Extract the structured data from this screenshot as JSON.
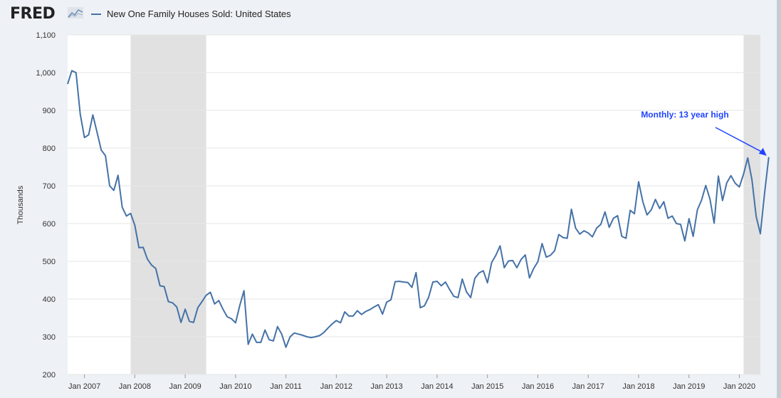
{
  "header": {
    "logo_text": "FRED",
    "logo_icon": "fred-chart-icon",
    "legend_label": "New One Family Houses Sold: United States",
    "series_color": "#4572a7"
  },
  "chart_data": {
    "type": "line",
    "title": "",
    "ylabel": "Thousands",
    "xlabel": "",
    "ylim": [
      200,
      1100
    ],
    "xlim": [
      "2006-09",
      "2020-06"
    ],
    "y_ticks": [
      200,
      300,
      400,
      500,
      600,
      700,
      800,
      900,
      1000,
      1100
    ],
    "y_tick_labels": [
      "200",
      "300",
      "400",
      "500",
      "600",
      "700",
      "800",
      "900",
      "1,000",
      "1,100"
    ],
    "x_tick_labels": [
      "Jan 2007",
      "Jan 2008",
      "Jan 2009",
      "Jan 2010",
      "Jan 2011",
      "Jan 2012",
      "Jan 2013",
      "Jan 2014",
      "Jan 2015",
      "Jan 2016",
      "Jan 2017",
      "Jan 2018",
      "Jan 2019",
      "Jan 2020"
    ],
    "grid": true,
    "recessions": [
      {
        "start": "2007-12",
        "end": "2009-06"
      },
      {
        "start": "2020-02",
        "end": "2020-06"
      }
    ],
    "annotation": {
      "text": "Monthly: 13 year high",
      "arrow_to": "2020-06"
    },
    "series": [
      {
        "color": "#4572a7",
        "start": "2006-09",
        "values": [
          970,
          1005,
          1000,
          890,
          828,
          835,
          888,
          842,
          795,
          780,
          700,
          688,
          728,
          643,
          620,
          627,
          595,
          536,
          537,
          506,
          490,
          481,
          435,
          433,
          393,
          390,
          379,
          338,
          373,
          341,
          338,
          377,
          393,
          410,
          418,
          387,
          396,
          373,
          353,
          348,
          337,
          383,
          422,
          280,
          307,
          285,
          285,
          318,
          292,
          289,
          327,
          307,
          272,
          300,
          310,
          307,
          304,
          300,
          298,
          300,
          303,
          311,
          323,
          334,
          343,
          337,
          366,
          355,
          355,
          369,
          359,
          367,
          372,
          379,
          385,
          360,
          392,
          398,
          446,
          447,
          445,
          444,
          431,
          470,
          377,
          382,
          405,
          445,
          447,
          435,
          445,
          425,
          407,
          404,
          453,
          419,
          404,
          455,
          469,
          475,
          443,
          497,
          516,
          541,
          483,
          501,
          502,
          483,
          505,
          517,
          456,
          481,
          499,
          547,
          511,
          516,
          528,
          571,
          563,
          561,
          638,
          588,
          572,
          581,
          575,
          565,
          588,
          598,
          631,
          590,
          614,
          621,
          566,
          561,
          635,
          626,
          711,
          658,
          623,
          636,
          664,
          640,
          658,
          614,
          620,
          600,
          598,
          554,
          613,
          566,
          636,
          662,
          701,
          665,
          601,
          726,
          661,
          708,
          727,
          707,
          697,
          731,
          774,
          716,
          619,
          573,
          680,
          776
        ]
      }
    ]
  }
}
